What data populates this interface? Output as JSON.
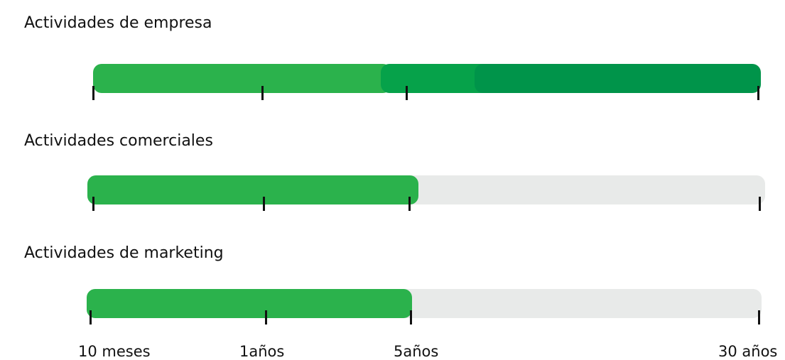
{
  "colors": {
    "light_green": "#2bb24c",
    "mid_green": "#06a24a",
    "dark_green": "#00944a",
    "track_gray": "#e8eae9",
    "tick": "#111111"
  },
  "chart_data": {
    "type": "bar",
    "orientation": "horizontal",
    "scale": "ordinal time axis",
    "ticks": [
      "10 meses",
      "1años",
      "5años",
      "30 años"
    ],
    "rows": [
      {
        "label": "Actividades de empresa",
        "segments": [
          {
            "from": "10 meses",
            "to": "5años",
            "shade": "light"
          },
          {
            "from": "5años",
            "to": "30 años",
            "shade": "mid"
          },
          {
            "from": "5años",
            "to": "30 años",
            "shade": "dark"
          }
        ],
        "max": "30 años"
      },
      {
        "label": "Actividades comerciales",
        "segments": [
          {
            "from": "10 meses",
            "to": "5años",
            "shade": "light"
          }
        ],
        "track_to": "30 años"
      },
      {
        "label": "Actividades de marketing",
        "segments": [
          {
            "from": "10 meses",
            "to": "5años",
            "shade": "light"
          }
        ],
        "track_to": "30 años"
      }
    ]
  }
}
